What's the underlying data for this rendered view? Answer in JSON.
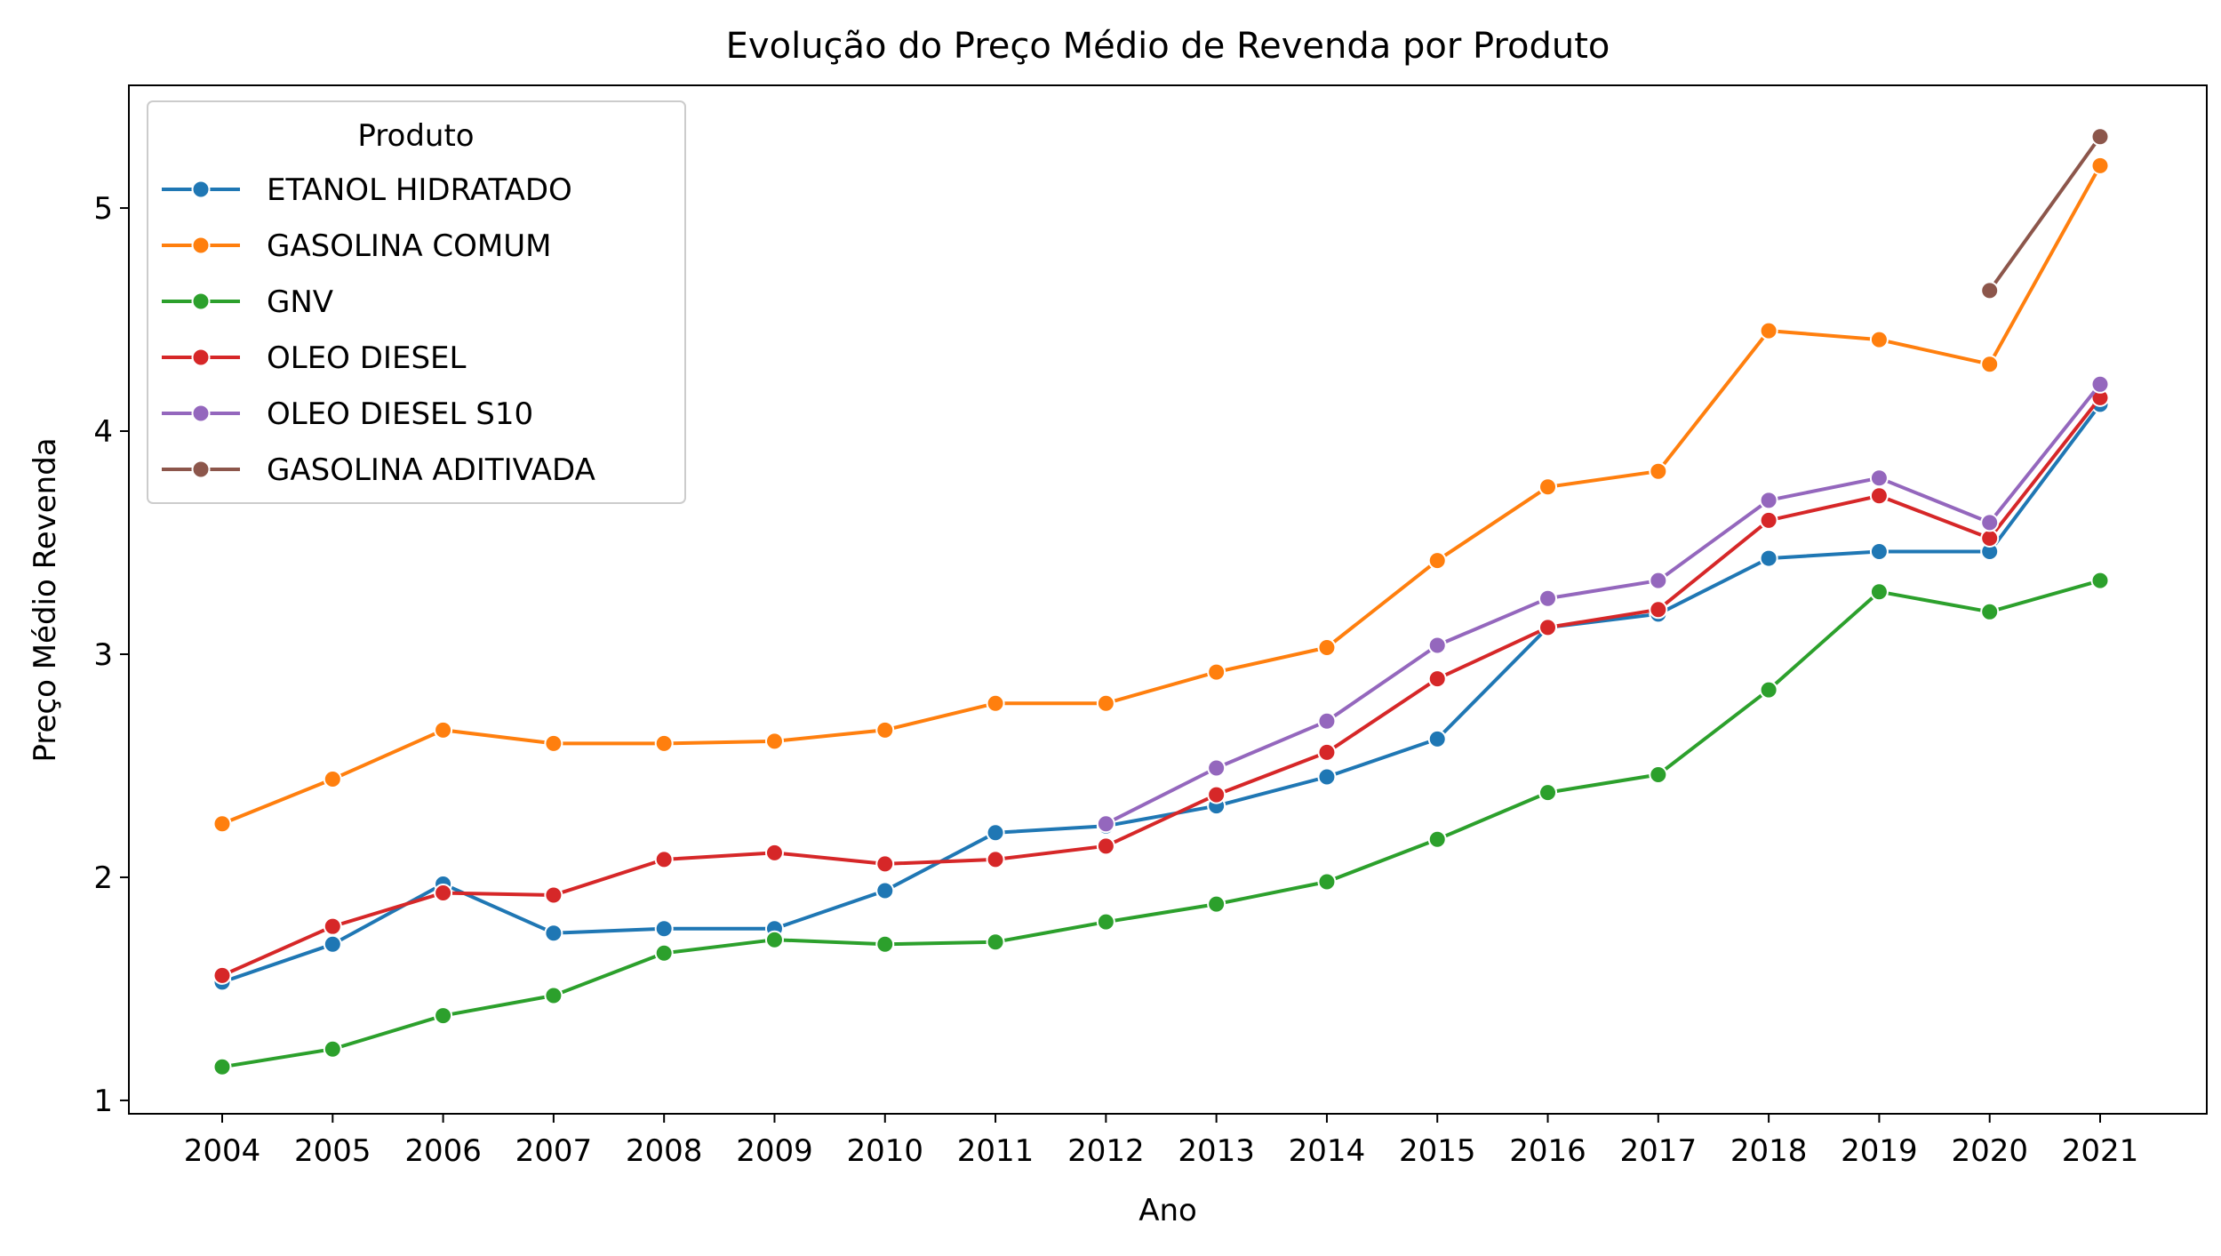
{
  "chart_data": {
    "type": "line",
    "title": "Evolução do Preço Médio de Revenda por Produto",
    "xlabel": "Ano",
    "ylabel": "Preço Médio Revenda",
    "categories": [
      "2004",
      "2005",
      "2006",
      "2007",
      "2008",
      "2009",
      "2010",
      "2011",
      "2012",
      "2013",
      "2014",
      "2015",
      "2016",
      "2017",
      "2018",
      "2019",
      "2020",
      "2021"
    ],
    "ylim": [
      0.94,
      5.55
    ],
    "yticks": [
      "1",
      "2",
      "3",
      "4",
      "5"
    ],
    "grid": false,
    "legend": {
      "title": "Produto",
      "position": "top-left"
    },
    "series": [
      {
        "name": "ETANOL HIDRATADO",
        "color": "#1f77b4",
        "values": [
          1.53,
          1.7,
          1.97,
          1.75,
          1.77,
          1.77,
          1.94,
          2.2,
          2.23,
          2.32,
          2.45,
          2.62,
          3.12,
          3.18,
          3.43,
          3.46,
          3.46,
          4.12
        ]
      },
      {
        "name": "GASOLINA COMUM",
        "color": "#ff7f0e",
        "values": [
          2.24,
          2.44,
          2.66,
          2.6,
          2.6,
          2.61,
          2.66,
          2.78,
          2.78,
          2.92,
          3.03,
          3.42,
          3.75,
          3.82,
          4.45,
          4.41,
          4.3,
          5.19
        ]
      },
      {
        "name": "GNV",
        "color": "#2ca02c",
        "values": [
          1.15,
          1.23,
          1.38,
          1.47,
          1.66,
          1.72,
          1.7,
          1.71,
          1.8,
          1.88,
          1.98,
          2.17,
          2.38,
          2.46,
          2.84,
          3.28,
          3.19,
          3.33
        ]
      },
      {
        "name": "OLEO DIESEL",
        "color": "#d62728",
        "values": [
          1.56,
          1.78,
          1.93,
          1.92,
          2.08,
          2.11,
          2.06,
          2.08,
          2.14,
          2.37,
          2.56,
          2.89,
          3.12,
          3.2,
          3.6,
          3.71,
          3.52,
          4.15
        ]
      },
      {
        "name": "OLEO DIESEL S10",
        "color": "#9467bd",
        "values": [
          null,
          null,
          null,
          null,
          null,
          null,
          null,
          null,
          2.24,
          2.49,
          2.7,
          3.04,
          3.25,
          3.33,
          3.69,
          3.79,
          3.59,
          4.21
        ]
      },
      {
        "name": "GASOLINA ADITIVADA",
        "color": "#8c564b",
        "values": [
          null,
          null,
          null,
          null,
          null,
          null,
          null,
          null,
          null,
          null,
          null,
          null,
          null,
          null,
          null,
          null,
          4.63,
          5.32
        ]
      }
    ]
  }
}
